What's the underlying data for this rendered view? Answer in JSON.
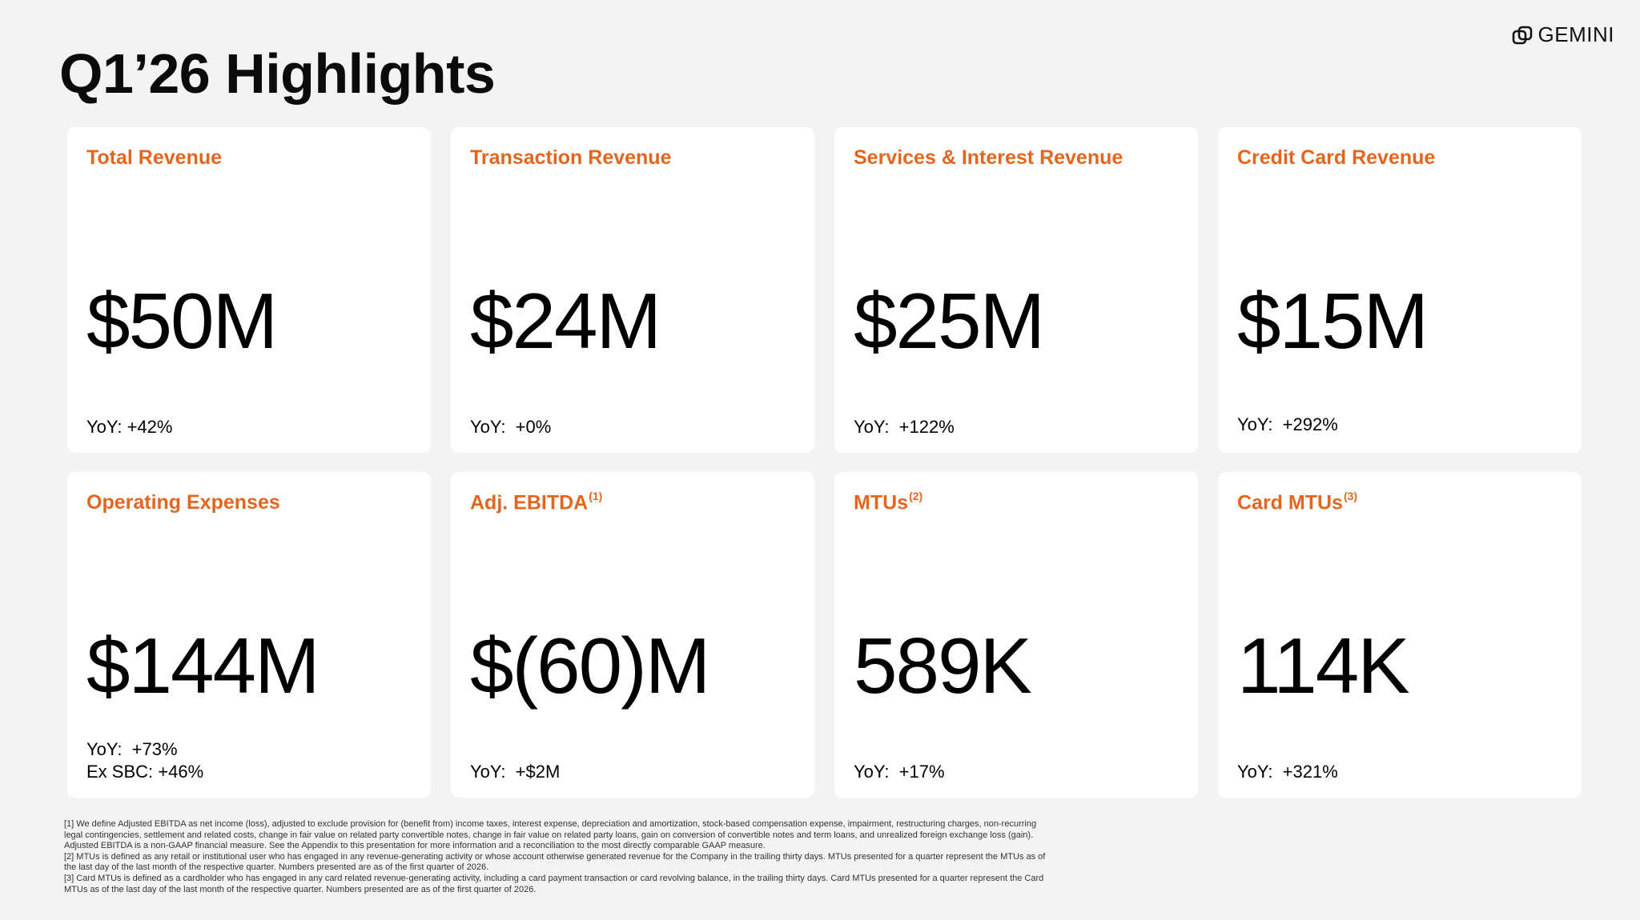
{
  "brand": {
    "name": "GEMINI",
    "logo_icon": "gemini-logo-icon"
  },
  "page": {
    "title": "Q1’26 Highlights",
    "accent_color": "#e2661f"
  },
  "cards": [
    {
      "title": "Total Revenue",
      "superscript": "",
      "value": "$50M",
      "lines": [
        "YoY: +42%"
      ]
    },
    {
      "title": "Transaction Revenue",
      "superscript": "",
      "value": "$24M",
      "lines": [
        "YoY:  +0%"
      ]
    },
    {
      "title": "Services & Interest Revenue",
      "superscript": "",
      "value": "$25M",
      "lines": [
        "YoY:  +122%"
      ]
    },
    {
      "title": "Credit Card Revenue",
      "superscript": "",
      "value": "$15M",
      "lines": [
        "YoY:  +292%"
      ]
    },
    {
      "title": "Operating Expenses",
      "superscript": "",
      "value": "$144M",
      "lines": [
        "YoY:  +73%",
        "Ex SBC: +46%"
      ]
    },
    {
      "title": "Adj. EBITDA",
      "superscript": "(1)",
      "value": "$(60)M",
      "lines": [
        "YoY:  +$2M"
      ]
    },
    {
      "title": "MTUs",
      "superscript": "(2)",
      "value": "589K",
      "lines": [
        "YoY:  +17%"
      ]
    },
    {
      "title": "Card MTUs",
      "superscript": "(3)",
      "value": "114K",
      "lines": [
        "YoY:  +321%"
      ]
    }
  ],
  "footnotes": [
    "[1] We define Adjusted EBITDA as net income (loss), adjusted to exclude provision for (benefit from) income taxes, interest expense, depreciation and amortization, stock-based compensation expense, impairment, restructuring charges, non-recurring legal contingencies, settlement and related costs, change in fair value on related party convertible notes, change in fair value on related party loans, gain on conversion of convertible notes and term loans, and unrealized foreign exchange loss (gain). Adjusted EBITDA is a non-GAAP financial measure. See the Appendix to this presentation for more information and a reconciliation to the most directly comparable GAAP measure.",
    "[2] MTUs is defined as any retail or institutional user who has engaged in any revenue-generating activity or whose account otherwise generated revenue for the Company in the trailing thirty days. MTUs presented for a quarter represent the MTUs as of the last day of the last month of the respective quarter. Numbers presented are as of the first quarter of 2026.",
    "[3] Card MTUs is defined as a cardholder who has engaged in any card related revenue-generating activity, including a card payment transaction or card revolving balance, in the trailing thirty days. Card MTUs presented for a quarter represent the Card MTUs as of the last day of the last month of the respective quarter. Numbers presented are as of the first quarter of 2026."
  ]
}
